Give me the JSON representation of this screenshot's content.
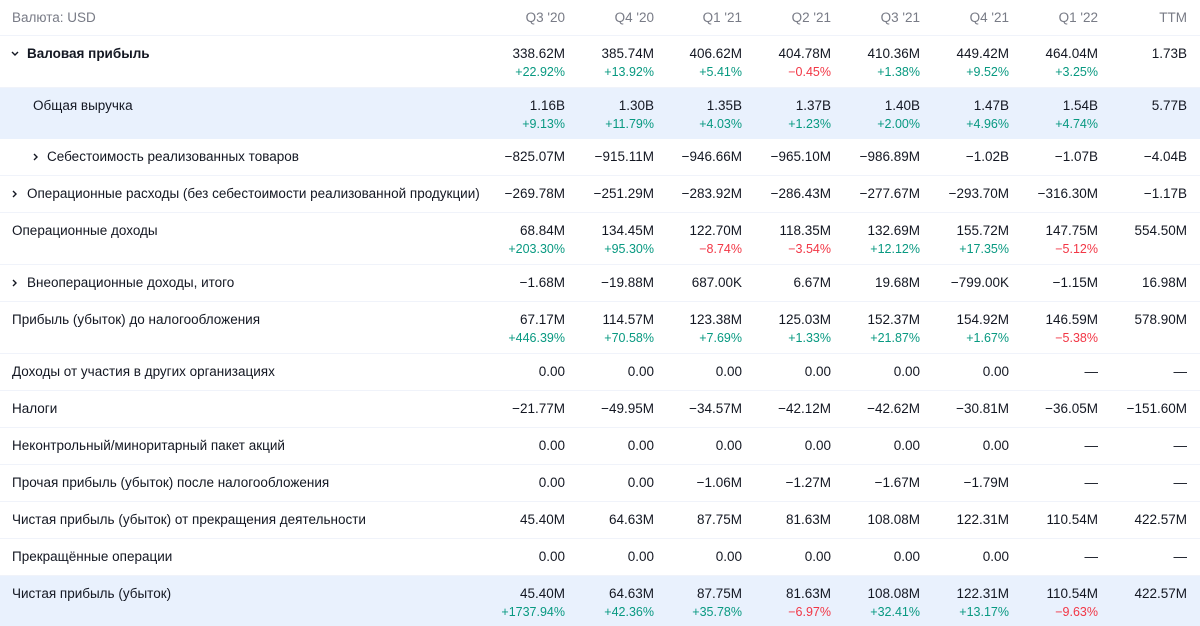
{
  "header": {
    "currency": "Валюта: USD",
    "columns": [
      "Q3 '20",
      "Q4 '20",
      "Q1 '21",
      "Q2 '21",
      "Q3 '21",
      "Q4 '21",
      "Q1 '22",
      "TTM"
    ]
  },
  "table": {
    "rows": [
      {
        "label": "Валовая прибыль",
        "values": [
          "338.62M",
          "385.74M",
          "406.62M",
          "404.78M",
          "410.36M",
          "449.42M",
          "464.04M",
          "1.73B"
        ],
        "changes": [
          "+22.92%",
          "+13.92%",
          "+5.41%",
          "−0.45%",
          "+1.38%",
          "+9.52%",
          "+3.25%"
        ]
      },
      {
        "label": "Общая выручка",
        "values": [
          "1.16B",
          "1.30B",
          "1.35B",
          "1.37B",
          "1.40B",
          "1.47B",
          "1.54B",
          "5.77B"
        ],
        "changes": [
          "+9.13%",
          "+11.79%",
          "+4.03%",
          "+1.23%",
          "+2.00%",
          "+4.96%",
          "+4.74%"
        ]
      },
      {
        "label": "Себестоимость реализованных товаров",
        "values": [
          "−825.07M",
          "−915.11M",
          "−946.66M",
          "−965.10M",
          "−986.89M",
          "−1.02B",
          "−1.07B",
          "−4.04B"
        ]
      },
      {
        "label": "Операционные расходы (без себестоимости реализованной продукции)",
        "values": [
          "−269.78M",
          "−251.29M",
          "−283.92M",
          "−286.43M",
          "−277.67M",
          "−293.70M",
          "−316.30M",
          "−1.17B"
        ]
      },
      {
        "label": "Операционные доходы",
        "values": [
          "68.84M",
          "134.45M",
          "122.70M",
          "118.35M",
          "132.69M",
          "155.72M",
          "147.75M",
          "554.50M"
        ],
        "changes": [
          "+203.30%",
          "+95.30%",
          "−8.74%",
          "−3.54%",
          "+12.12%",
          "+17.35%",
          "−5.12%"
        ]
      },
      {
        "label": "Внеоперационные доходы, итого",
        "values": [
          "−1.68M",
          "−19.88M",
          "687.00K",
          "6.67M",
          "19.68M",
          "−799.00K",
          "−1.15M",
          "16.98M"
        ]
      },
      {
        "label": "Прибыль (убыток) до налогообложения",
        "values": [
          "67.17M",
          "114.57M",
          "123.38M",
          "125.03M",
          "152.37M",
          "154.92M",
          "146.59M",
          "578.90M"
        ],
        "changes": [
          "+446.39%",
          "+70.58%",
          "+7.69%",
          "+1.33%",
          "+21.87%",
          "+1.67%",
          "−5.38%"
        ]
      },
      {
        "label": "Доходы от участия в других организациях",
        "values": [
          "0.00",
          "0.00",
          "0.00",
          "0.00",
          "0.00",
          "0.00",
          "—",
          "—"
        ]
      },
      {
        "label": "Налоги",
        "values": [
          "−21.77M",
          "−49.95M",
          "−34.57M",
          "−42.12M",
          "−42.62M",
          "−30.81M",
          "−36.05M",
          "−151.60M"
        ]
      },
      {
        "label": "Неконтрольный/миноритарный пакет акций",
        "values": [
          "0.00",
          "0.00",
          "0.00",
          "0.00",
          "0.00",
          "0.00",
          "—",
          "—"
        ]
      },
      {
        "label": "Прочая прибыль (убыток) после налогообложения",
        "values": [
          "0.00",
          "0.00",
          "−1.06M",
          "−1.27M",
          "−1.67M",
          "−1.79M",
          "—",
          "—"
        ]
      },
      {
        "label": "Чистая прибыль (убыток) от прекращения деятельности",
        "values": [
          "45.40M",
          "64.63M",
          "87.75M",
          "81.63M",
          "108.08M",
          "122.31M",
          "110.54M",
          "422.57M"
        ]
      },
      {
        "label": "Прекращённые операции",
        "values": [
          "0.00",
          "0.00",
          "0.00",
          "0.00",
          "0.00",
          "0.00",
          "—",
          "—"
        ]
      },
      {
        "label": "Чистая прибыль (убыток)",
        "values": [
          "45.40M",
          "64.63M",
          "87.75M",
          "81.63M",
          "108.08M",
          "122.31M",
          "110.54M",
          "422.57M"
        ],
        "changes": [
          "+1737.94%",
          "+42.36%",
          "+35.78%",
          "−6.97%",
          "+32.41%",
          "+13.17%",
          "−9.63%"
        ]
      }
    ]
  }
}
